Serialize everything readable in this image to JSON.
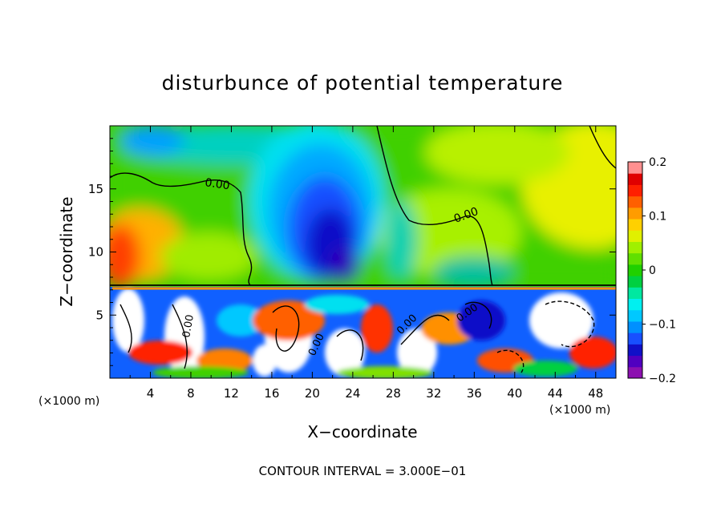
{
  "chart_data": {
    "type": "heatmap",
    "title": "disturbunce of potential temperature",
    "xlabel": "X−coordinate",
    "ylabel": "Z−coordinate",
    "x_unit_label": "(×1000 m)",
    "z_unit_label": "(×1000 m)",
    "footer": "CONTOUR INTERVAL = 3.000E−01",
    "xlim": [
      0,
      50
    ],
    "zlim": [
      0,
      20
    ],
    "x_ticks": [
      4,
      8,
      12,
      16,
      20,
      24,
      28,
      32,
      36,
      40,
      44,
      48
    ],
    "z_ticks": [
      5,
      10,
      15
    ],
    "colorbar": {
      "range": [
        -0.2,
        0.2
      ],
      "tick_labels": [
        "0.2",
        "0.1",
        "0",
        "−0.1",
        "−0.2"
      ],
      "tick_values": [
        0.2,
        0.1,
        0,
        -0.1,
        -0.2
      ],
      "colors": [
        "#8c10b0",
        "#5000c0",
        "#1010c8",
        "#1850ff",
        "#0090ff",
        "#00c8ff",
        "#00f0f0",
        "#00e8a0",
        "#00d040",
        "#20d000",
        "#60e000",
        "#a0f000",
        "#e0f000",
        "#ffd000",
        "#ff9c00",
        "#ff6000",
        "#ff2000",
        "#e00000",
        "#ff9090"
      ]
    },
    "contour_label": "0.00",
    "contour_labels_shown": [
      "0.00",
      "0.00",
      "0.00",
      "0.00",
      "0.00",
      "0.00"
    ]
  }
}
